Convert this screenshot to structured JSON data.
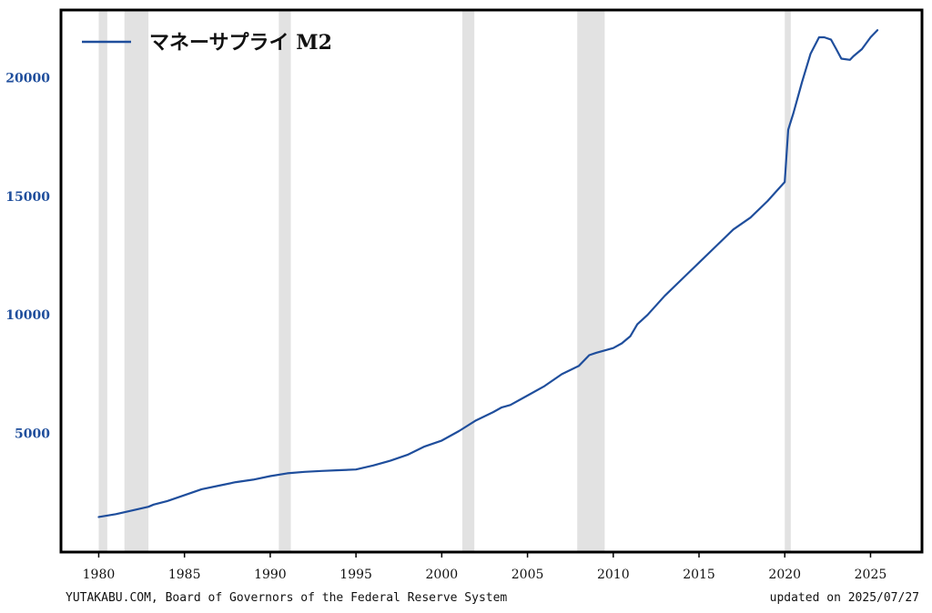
{
  "chart_data": {
    "type": "line",
    "legend": {
      "label": "マネーサプライ M2",
      "position": "top-left"
    },
    "colors": {
      "line": "#1f4e9c",
      "recession": "#e2e2e2",
      "frame": "#000000",
      "ytick": "#1f4e9c"
    },
    "xlim": [
      1977.8,
      2028.0
    ],
    "ylim": [
      0,
      22850
    ],
    "x_ticks": [
      1980,
      1985,
      1990,
      1995,
      2000,
      2005,
      2010,
      2015,
      2020,
      2025
    ],
    "y_ticks": [
      5000,
      10000,
      15000,
      20000
    ],
    "grid": false,
    "recessions": [
      [
        1980.0,
        1980.5
      ],
      [
        1981.5,
        1982.9
      ],
      [
        1990.5,
        1991.2
      ],
      [
        2001.2,
        2001.9
      ],
      [
        2007.9,
        2009.5
      ],
      [
        2020.0,
        2020.35
      ]
    ],
    "series": [
      {
        "name": "マネーサプライ M2",
        "x": [
          1980.0,
          1981.0,
          1982.0,
          1982.9,
          1983.2,
          1984.0,
          1985.0,
          1986.0,
          1987.0,
          1988.0,
          1989.0,
          1990.0,
          1991.0,
          1992.0,
          1993.0,
          1994.0,
          1995.0,
          1996.0,
          1997.0,
          1998.0,
          1999.0,
          2000.0,
          2001.0,
          2002.0,
          2003.0,
          2003.5,
          2004.0,
          2005.0,
          2006.0,
          2007.0,
          2008.0,
          2008.6,
          2009.0,
          2009.5,
          2010.0,
          2010.5,
          2011.0,
          2011.4,
          2011.7,
          2012.0,
          2013.0,
          2014.0,
          2015.0,
          2016.0,
          2017.0,
          2018.0,
          2019.0,
          2019.5,
          2020.0,
          2020.2,
          2020.5,
          2021.0,
          2021.5,
          2022.0,
          2022.3,
          2022.7,
          2023.0,
          2023.3,
          2023.8,
          2024.0,
          2024.5,
          2025.0,
          2025.4
        ],
        "values": [
          1480,
          1600,
          1760,
          1910,
          2000,
          2150,
          2400,
          2650,
          2800,
          2950,
          3050,
          3200,
          3320,
          3380,
          3420,
          3450,
          3480,
          3650,
          3850,
          4100,
          4450,
          4700,
          5100,
          5550,
          5900,
          6100,
          6200,
          6600,
          7000,
          7500,
          7850,
          8300,
          8400,
          8500,
          8600,
          8800,
          9100,
          9600,
          9800,
          10000,
          10800,
          11500,
          12200,
          12900,
          13600,
          14100,
          14800,
          15200,
          15600,
          17800,
          18500,
          19800,
          21000,
          21700,
          21700,
          21600,
          21200,
          20800,
          20750,
          20900,
          21200,
          21700,
          22000
        ]
      }
    ]
  },
  "footer": {
    "source": "YUTAKABU.COM, Board of Governors of the Federal Reserve System",
    "updated": "updated on 2025/07/27"
  }
}
